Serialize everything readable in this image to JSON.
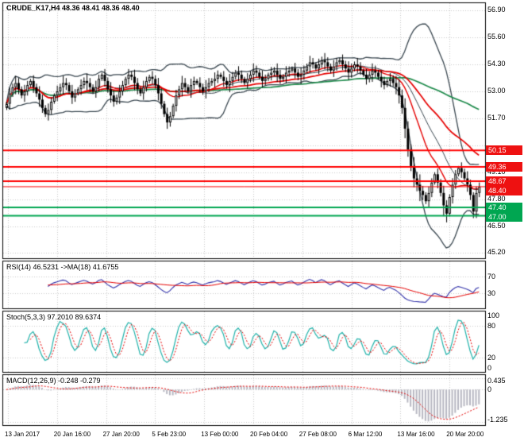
{
  "chart_data": {
    "type": "candlestick",
    "title": "CRUDE_K17,H4 48.36 48.41 48.36 48.40",
    "symbol": "CRUDE_K17",
    "timeframe": "H4",
    "ohlc_readout": {
      "open": "48.36",
      "high": "48.41",
      "low": "48.36",
      "close": "48.40"
    },
    "x_labels": [
      "13 Jan 2017",
      "20 Jan 16:00",
      "27 Jan 20:00",
      "5 Feb 23:00",
      "13 Feb 00:00",
      "20 Feb 04:00",
      "27 Feb 08:00",
      "6 Mar 12:00",
      "13 Mar 16:00",
      "20 Mar 20:00"
    ],
    "colors": {
      "background": "#ffffff",
      "panel_border": "#000000",
      "grid": "#c9c9c9",
      "candle": "#000000",
      "bollinger": "#3a4750",
      "ma_red": "#e60000",
      "ma_green": "#1f8b4c",
      "level_red": "#ff0000",
      "level_green": "#00a651",
      "rsi_line": "#3333aa",
      "signal_red": "#e60000",
      "stoch_line": "#20b2aa",
      "macd_hist": "#b8b8c2",
      "badge_red": "#ee1111",
      "badge_green": "#00a651",
      "text": "#000000"
    },
    "panels": [
      {
        "name": "price",
        "ylim": [
          44.95,
          57.25
        ],
        "y_ticks": [
          "56.90",
          "55.60",
          "54.30",
          "53.00",
          "51.70",
          "49.10",
          "47.80",
          "46.50",
          "45.20"
        ],
        "grid_values": [
          56.9,
          55.6,
          54.3,
          53.0,
          51.7,
          50.4,
          49.1,
          47.8,
          46.5,
          45.2
        ],
        "levels": [
          {
            "value": 50.15,
            "color": "red",
            "width": 2
          },
          {
            "value": 49.36,
            "color": "red",
            "width": 2
          },
          {
            "value": 48.67,
            "color": "red",
            "width": 2
          },
          {
            "value": 48.4,
            "color": "red",
            "width": 1
          },
          {
            "value": 47.4,
            "color": "green",
            "width": 2
          },
          {
            "value": 47.0,
            "color": "green",
            "width": 2
          }
        ],
        "badges": [
          {
            "text": "50.15",
            "bg": "red"
          },
          {
            "text": "49.36",
            "bg": "red"
          },
          {
            "text": "48.67",
            "bg": "red"
          },
          {
            "text": "48.40",
            "bg": "red"
          },
          {
            "text": "47.40",
            "bg": "green"
          },
          {
            "text": "47.00",
            "bg": "green"
          }
        ],
        "overlays": {
          "bollinger_period": 20,
          "bollinger_dev": 2,
          "ma_red_fast": 20,
          "ma_red_slow": 55,
          "ma_green": 80
        },
        "series": {
          "closes": [
            52.4,
            52.9,
            53.2,
            53.4,
            53.1,
            52.8,
            53.0,
            53.3,
            53.5,
            53.2,
            52.9,
            52.6,
            52.2,
            51.9,
            52.1,
            52.5,
            52.8,
            53.0,
            53.2,
            53.4,
            53.3,
            53.0,
            52.7,
            52.9,
            53.1,
            53.3,
            53.5,
            53.4,
            53.2,
            53.0,
            53.2,
            53.6,
            53.8,
            53.5,
            53.1,
            52.8,
            52.5,
            52.7,
            53.0,
            53.3,
            53.6,
            53.8,
            53.7,
            53.4,
            53.1,
            52.9,
            53.2,
            53.5,
            53.7,
            53.6,
            53.3,
            52.9,
            52.4,
            51.9,
            51.5,
            51.8,
            52.3,
            52.8,
            53.1,
            53.4,
            53.2,
            53.0,
            53.3,
            53.5,
            53.4,
            53.2,
            53.0,
            53.2,
            53.4,
            53.5,
            53.6,
            53.8,
            53.7,
            53.5,
            53.3,
            53.5,
            53.7,
            53.9,
            53.8,
            53.6,
            53.4,
            53.6,
            53.8,
            54.0,
            53.9,
            53.7,
            53.5,
            53.6,
            53.8,
            53.9,
            54.0,
            53.8,
            53.6,
            53.7,
            53.9,
            54.0,
            54.1,
            53.9,
            53.7,
            53.8,
            54.0,
            54.2,
            54.4,
            54.3,
            54.1,
            54.3,
            54.5,
            54.4,
            54.2,
            54.0,
            54.2,
            54.4,
            54.5,
            54.3,
            54.1,
            53.9,
            54.1,
            54.3,
            54.2,
            54.0,
            53.8,
            53.6,
            53.8,
            54.0,
            53.9,
            53.7,
            53.5,
            53.3,
            53.5,
            53.6,
            53.4,
            53.2,
            52.8,
            52.2,
            51.2,
            50.2,
            49.4,
            48.8,
            48.5,
            48.2,
            48.0,
            47.7,
            48.1,
            48.6,
            49.0,
            48.6,
            48.1,
            47.5,
            47.1,
            47.9,
            48.5,
            49.0,
            49.3,
            49.1,
            48.8,
            48.5,
            48.0,
            47.2,
            48.1,
            48.4
          ]
        }
      },
      {
        "name": "rsi",
        "label": "RSI(14) 46.5231 ->MA(18) 41.6755",
        "period": 14,
        "ma_period": 18,
        "current": 46.5231,
        "ma_current": 41.6755,
        "y_ticks": [
          "70",
          "30"
        ],
        "ylim": [
          0,
          100
        ]
      },
      {
        "name": "stoch",
        "label": "Stoch(5,3,3) 97.2010 89.6374",
        "k": 5,
        "d": 3,
        "slowing": 3,
        "current": 97.201,
        "signal_current": 89.6374,
        "y_ticks": [
          "100",
          "80",
          "20",
          "0"
        ],
        "ylim": [
          0,
          100
        ]
      },
      {
        "name": "macd",
        "label": "MACD(12,26,9) -0.248 -0.279",
        "fast": 12,
        "slow": 26,
        "signal": 9,
        "current": -0.248,
        "signal_current": -0.279,
        "y_ticks": [
          "0.435",
          "0",
          "-1.235"
        ]
      }
    ]
  }
}
